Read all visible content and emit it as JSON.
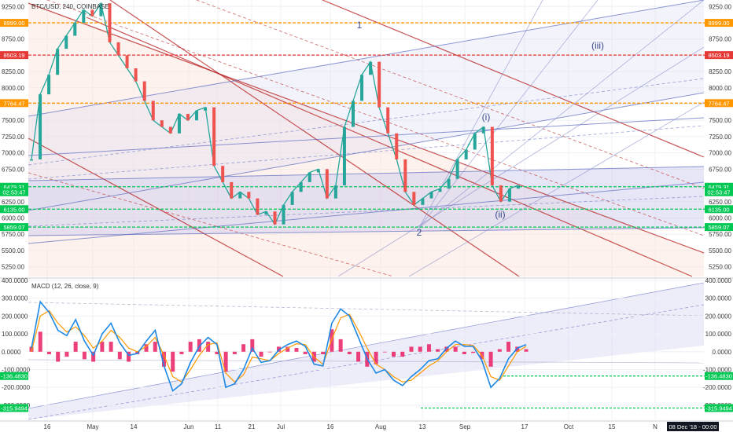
{
  "header": {
    "symbol": "BTC/USD, 240, COINBASE"
  },
  "indicator": {
    "label": "MACD (12, 26, close, 9)"
  },
  "footer": {
    "timestamp": "08 Dec '18 - 00:00"
  },
  "colors": {
    "orange": "#ff9800",
    "red": "#e53935",
    "green": "#00c853",
    "macd": "#1e88e5",
    "signal": "#ff9800",
    "hist": "#e91e63",
    "channel_red": "#b71c1c",
    "channel_blue": "#5c6bc0"
  },
  "chart_data": [
    {
      "type": "line",
      "title": "BTC/USD, 240, COINBASE",
      "ylim": [
        5100,
        9350
      ],
      "y_ticks": [
        "9250.00",
        "9000.00",
        "8750.00",
        "8500.00",
        "8250.00",
        "8000.00",
        "7750.00",
        "7500.00",
        "7250.00",
        "7000.00",
        "6750.00",
        "6500.00",
        "6250.00",
        "6000.00",
        "5750.00",
        "5500.00",
        "5250.00"
      ],
      "x_tick_labels": [
        "16",
        "May",
        "14",
        "Jun",
        "11",
        "21",
        "Jul",
        "16",
        "Aug",
        "13",
        "Sep",
        "17",
        "Oct",
        "15",
        "N"
      ],
      "price_tags": [
        {
          "label": "8999.00",
          "value": 8999,
          "color": "orange"
        },
        {
          "label": "8503.19",
          "value": 8503.19,
          "color": "red"
        },
        {
          "label": "7764.47",
          "value": 7764.47,
          "color": "orange"
        },
        {
          "label": "6479.31",
          "value": 6479.31,
          "color": "green"
        },
        {
          "label": "02:53:47",
          "value": 6395,
          "color": "green"
        },
        {
          "label": "6135.00",
          "value": 6135,
          "color": "green"
        },
        {
          "label": "5859.07",
          "value": 5859.07,
          "color": "green"
        }
      ],
      "wave_labels": [
        "1",
        "2",
        "(i)",
        "(ii)",
        "(iii)"
      ],
      "series": [
        {
          "name": "BTC/USD",
          "x_step_days": 3,
          "start": "2018-04-12",
          "values": [
            6900,
            7900,
            8200,
            8600,
            8800,
            9000,
            9200,
            9100,
            9300,
            8700,
            8500,
            8300,
            8100,
            7800,
            7500,
            7400,
            7300,
            7600,
            7500,
            7650,
            7700,
            6800,
            6550,
            6300,
            6400,
            6300,
            6050,
            6100,
            5900,
            6200,
            6400,
            6550,
            6700,
            6750,
            6300,
            6500,
            7400,
            7800,
            8200,
            8400,
            7700,
            7300,
            6900,
            6400,
            6200,
            6300,
            6400,
            6450,
            6600,
            6900,
            7050,
            7300,
            7400,
            6500,
            6250,
            6450,
            6500
          ]
        }
      ]
    },
    {
      "type": "line",
      "title": "MACD (12, 26, close, 9)",
      "ylim": [
        -380,
        400
      ],
      "y_ticks": [
        "400.0000",
        "300.0000",
        "200.0000",
        "100.0000",
        "0.0000",
        "-100.0000",
        "-200.0000",
        "-300.0000"
      ],
      "price_tags": [
        {
          "label": "-136.4830",
          "value": -136.483,
          "color": "green"
        },
        {
          "label": "-315.9494",
          "value": -315.9494,
          "color": "green"
        }
      ],
      "series": [
        {
          "name": "MACD",
          "values": [
            20,
            280,
            220,
            120,
            90,
            180,
            60,
            -20,
            100,
            160,
            50,
            -20,
            -10,
            60,
            120,
            -80,
            -220,
            -180,
            -60,
            30,
            80,
            40,
            -200,
            -180,
            -100,
            20,
            -60,
            -50,
            10,
            40,
            60,
            30,
            -70,
            -80,
            160,
            240,
            200,
            80,
            -40,
            -120,
            -100,
            -160,
            -190,
            -140,
            -100,
            -50,
            -40,
            20,
            60,
            30,
            30,
            -50,
            -200,
            -150,
            -40,
            20,
            40
          ]
        },
        {
          "name": "Signal",
          "values": [
            0,
            200,
            230,
            160,
            110,
            140,
            90,
            20,
            60,
            120,
            80,
            20,
            0,
            30,
            80,
            -20,
            -140,
            -170,
            -100,
            -20,
            40,
            50,
            -120,
            -170,
            -130,
            -30,
            -40,
            -50,
            -10,
            20,
            45,
            40,
            -30,
            -70,
            70,
            190,
            210,
            120,
            20,
            -70,
            -100,
            -140,
            -170,
            -160,
            -120,
            -80,
            -50,
            0,
            40,
            40,
            35,
            -20,
            -140,
            -160,
            -80,
            0,
            30
          ]
        }
      ]
    }
  ]
}
